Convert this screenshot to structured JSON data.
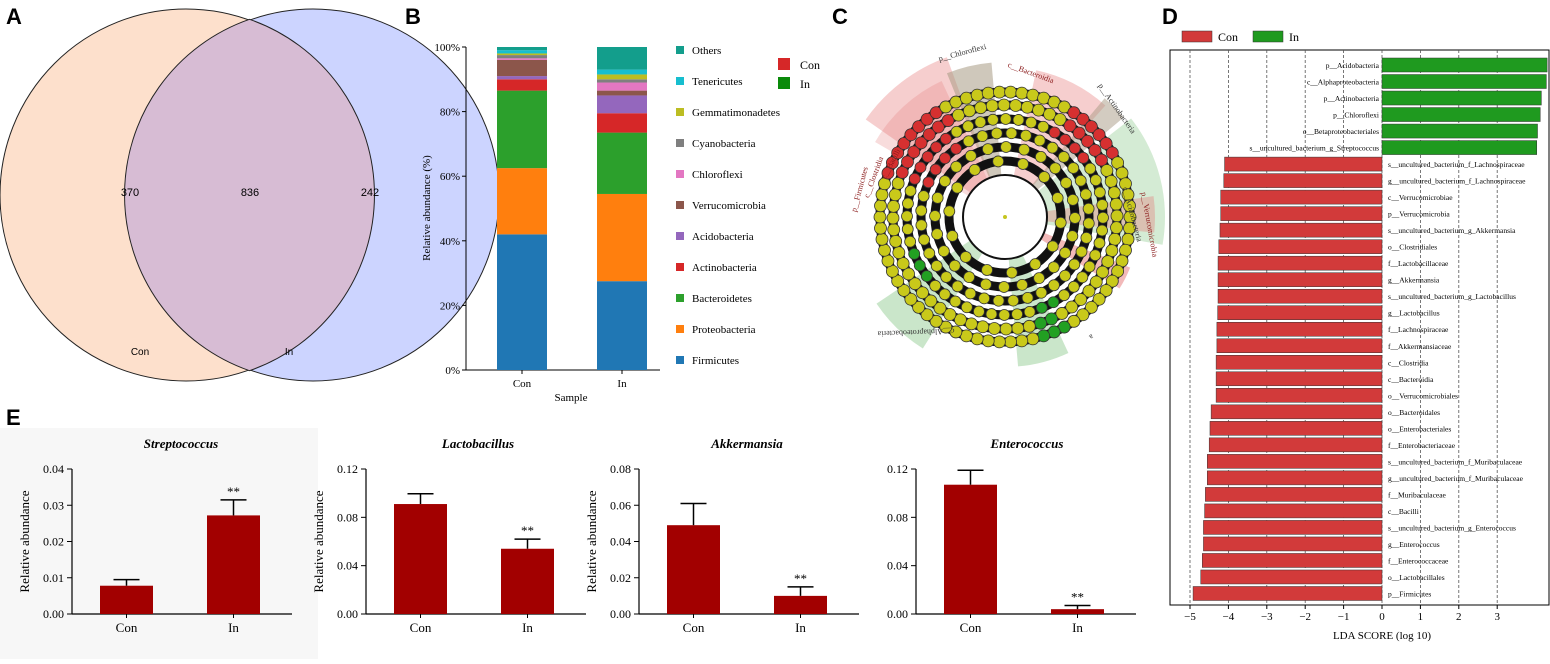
{
  "panels": {
    "a": "A",
    "b": "B",
    "c": "C",
    "d": "D",
    "e": "E"
  },
  "chart_data": [
    {
      "id": "venn",
      "type": "venn",
      "sets": [
        {
          "name": "Con",
          "unique": 370,
          "color": "#fde0cc"
        },
        {
          "name": "In",
          "unique": 242,
          "color": "#ccd4ff"
        }
      ],
      "overlap": 836,
      "overlap_color": "#d7bcd4",
      "labels": {
        "con": "Con",
        "in": "In",
        "con_only": "370",
        "shared": "836",
        "in_only": "242"
      }
    },
    {
      "id": "stacked",
      "type": "bar",
      "stacked": true,
      "title": "",
      "xlabel": "Sample",
      "ylabel": "Relative abundance (%)",
      "ylim": [
        0,
        100
      ],
      "yticks": [
        "0%",
        "20%",
        "40%",
        "60%",
        "80%",
        "100%"
      ],
      "categories": [
        "Con",
        "In"
      ],
      "series": [
        {
          "name": "Firmicutes",
          "color": "#2077b4",
          "values": [
            42,
            27.5
          ]
        },
        {
          "name": "Proteobacteria",
          "color": "#ff7f0e",
          "values": [
            20.5,
            27
          ]
        },
        {
          "name": "Bacteroidetes",
          "color": "#2ca02c",
          "values": [
            24,
            19
          ]
        },
        {
          "name": "Actinobacteria",
          "color": "#d62728",
          "values": [
            3.5,
            6
          ]
        },
        {
          "name": "Acidobacteria",
          "color": "#9467bd",
          "values": [
            1,
            5.5
          ]
        },
        {
          "name": "Verrucomicrobia",
          "color": "#8c564b",
          "values": [
            5,
            1.5
          ]
        },
        {
          "name": "Chloroflexi",
          "color": "#e377c2",
          "values": [
            0.5,
            2.5
          ]
        },
        {
          "name": "Cyanobacteria",
          "color": "#7f7f7f",
          "values": [
            1,
            1
          ]
        },
        {
          "name": "Gemmatimonadetes",
          "color": "#bcbd22",
          "values": [
            0.5,
            1.5
          ]
        },
        {
          "name": "Tenericutes",
          "color": "#17becf",
          "values": [
            1,
            1.5
          ]
        },
        {
          "name": "Others",
          "color": "#139e8c",
          "values": [
            1,
            7
          ]
        }
      ],
      "legend": [
        "Others",
        "Tenericutes",
        "Gemmatimonadetes",
        "Cyanobacteria",
        "Chloroflexi",
        "Verrucomicrobia",
        "Acidobacteria",
        "Actinobacteria",
        "Bacteroidetes",
        "Proteobacteria",
        "Firmicutes"
      ]
    },
    {
      "id": "cladogram",
      "type": "cladogram",
      "legend": [
        {
          "name": "Con",
          "color": "#d62728"
        },
        {
          "name": "In",
          "color": "#0a8a0a"
        }
      ],
      "sector_labels": [
        "p__Chloroflexi",
        "c__Bacteroidia",
        "p__Actinobacteria",
        "p__Firmicutes",
        "c__Clostridia",
        "c__Bacilli",
        "c__Acidobacteria",
        "p__Verrucomicrobia",
        "c__Alphaproteobacteria",
        "a"
      ]
    },
    {
      "id": "lefse",
      "type": "bar",
      "orientation": "horizontal",
      "xlabel": "LDA SCORE (log 10)",
      "xlim": [
        -5,
        4.4
      ],
      "xticks": [
        -5,
        -4,
        -3,
        -2,
        -1,
        0,
        1,
        2,
        3
      ],
      "legend": [
        {
          "name": "Con",
          "color": "#d23a3a"
        },
        {
          "name": "In",
          "color": "#1f9a1f"
        }
      ],
      "items": [
        {
          "label": "p__Acidobacteria",
          "value": 4.3
        },
        {
          "label": "c__Alphaproteobacteria",
          "value": 4.28
        },
        {
          "label": "p__Actinobacteria",
          "value": 4.15
        },
        {
          "label": "p__Chloroflexi",
          "value": 4.12
        },
        {
          "label": "o__Betaproteobacteriales",
          "value": 4.05
        },
        {
          "label": "s__uncultured_bacterium_g_Streptococcus",
          "value": 4.03
        },
        {
          "label": "s__uncultured_bacterium_f_Lachnospiraceae",
          "value": -4.1
        },
        {
          "label": "g__uncultured_bacterium_f_Lachnospiraceae",
          "value": -4.12
        },
        {
          "label": "c__Verrucomicrobiae",
          "value": -4.2
        },
        {
          "label": "p__Verrucomicrobia",
          "value": -4.2
        },
        {
          "label": "s__uncultured_bacterium_g_Akkermansia",
          "value": -4.22
        },
        {
          "label": "o__Clostridiales",
          "value": -4.25
        },
        {
          "label": "f__Lactobacillaceae",
          "value": -4.27
        },
        {
          "label": "g__Akkermansia",
          "value": -4.27
        },
        {
          "label": "s__uncultured_bacterium_g_Lactobacillus",
          "value": -4.27
        },
        {
          "label": "g__Lactobacillus",
          "value": -4.28
        },
        {
          "label": "f__Lachnospiraceae",
          "value": -4.3
        },
        {
          "label": "f__Akkermansiaceae",
          "value": -4.3
        },
        {
          "label": "c__Clostridia",
          "value": -4.32
        },
        {
          "label": "c__Bacteroidia",
          "value": -4.32
        },
        {
          "label": "o__Verrucomicrobiales",
          "value": -4.32
        },
        {
          "label": "o__Bacteroidales",
          "value": -4.45
        },
        {
          "label": "o__Enterobacteriales",
          "value": -4.48
        },
        {
          "label": "f__Enterobacteriaceae",
          "value": -4.5
        },
        {
          "label": "s__uncultured_bacterium_f_Muribaculaceae",
          "value": -4.55
        },
        {
          "label": "g__uncultured_bacterium_f_Muribaculaceae",
          "value": -4.55
        },
        {
          "label": "f__Muribaculaceae",
          "value": -4.6
        },
        {
          "label": "c__Bacilli",
          "value": -4.62
        },
        {
          "label": "s__uncultured_bacterium_g_Enterococcus",
          "value": -4.65
        },
        {
          "label": "g__Enterococcus",
          "value": -4.65
        },
        {
          "label": "f__Enterococcaceae",
          "value": -4.68
        },
        {
          "label": "o__Lactobacillales",
          "value": -4.72
        },
        {
          "label": "p__Firmicutes",
          "value": -4.92
        }
      ]
    },
    {
      "id": "strep",
      "type": "bar",
      "title": "Streptococcus",
      "ylabel": "Relative abundance",
      "categories": [
        "Con",
        "In"
      ],
      "values": [
        0.0078,
        0.0272
      ],
      "errors": [
        0.0017,
        0.0043
      ],
      "ylim": [
        0,
        0.04
      ],
      "yticks": [
        "0.00",
        "0.01",
        "0.02",
        "0.03",
        "0.04"
      ],
      "yvals": [
        0,
        0.01,
        0.02,
        0.03,
        0.04
      ],
      "significance": [
        "",
        "**"
      ],
      "color": "#a20000"
    },
    {
      "id": "lacto",
      "type": "bar",
      "title": "Lactobacillus",
      "ylabel": "Relative abundance",
      "categories": [
        "Con",
        "In"
      ],
      "values": [
        0.091,
        0.054
      ],
      "errors": [
        0.0085,
        0.008
      ],
      "ylim": [
        0,
        0.12
      ],
      "yticks": [
        "0.00",
        "0.04",
        "0.08",
        "0.12"
      ],
      "yvals": [
        0,
        0.04,
        0.08,
        0.12
      ],
      "significance": [
        "",
        "**"
      ],
      "color": "#a20000"
    },
    {
      "id": "akk",
      "type": "bar",
      "title": "Akkermansia",
      "ylabel": "Relative abundance",
      "categories": [
        "Con",
        "In"
      ],
      "values": [
        0.049,
        0.01
      ],
      "errors": [
        0.012,
        0.005
      ],
      "ylim": [
        0,
        0.08
      ],
      "yticks": [
        "0.00",
        "0.02",
        "0.04",
        "0.06",
        "0.08"
      ],
      "yvals": [
        0,
        0.02,
        0.04,
        0.06,
        0.08
      ],
      "significance": [
        "",
        "**"
      ],
      "color": "#a20000"
    },
    {
      "id": "entero",
      "type": "bar",
      "title": "Enterococcus",
      "ylabel": "",
      "categories": [
        "Con",
        "In"
      ],
      "values": [
        0.107,
        0.004
      ],
      "errors": [
        0.012,
        0.003
      ],
      "ylim": [
        0,
        0.12
      ],
      "yticks": [
        "0.00",
        "0.04",
        "0.08",
        "0.12"
      ],
      "yvals": [
        0,
        0.04,
        0.08,
        0.12
      ],
      "significance": [
        "",
        "**"
      ],
      "color": "#a20000"
    }
  ]
}
